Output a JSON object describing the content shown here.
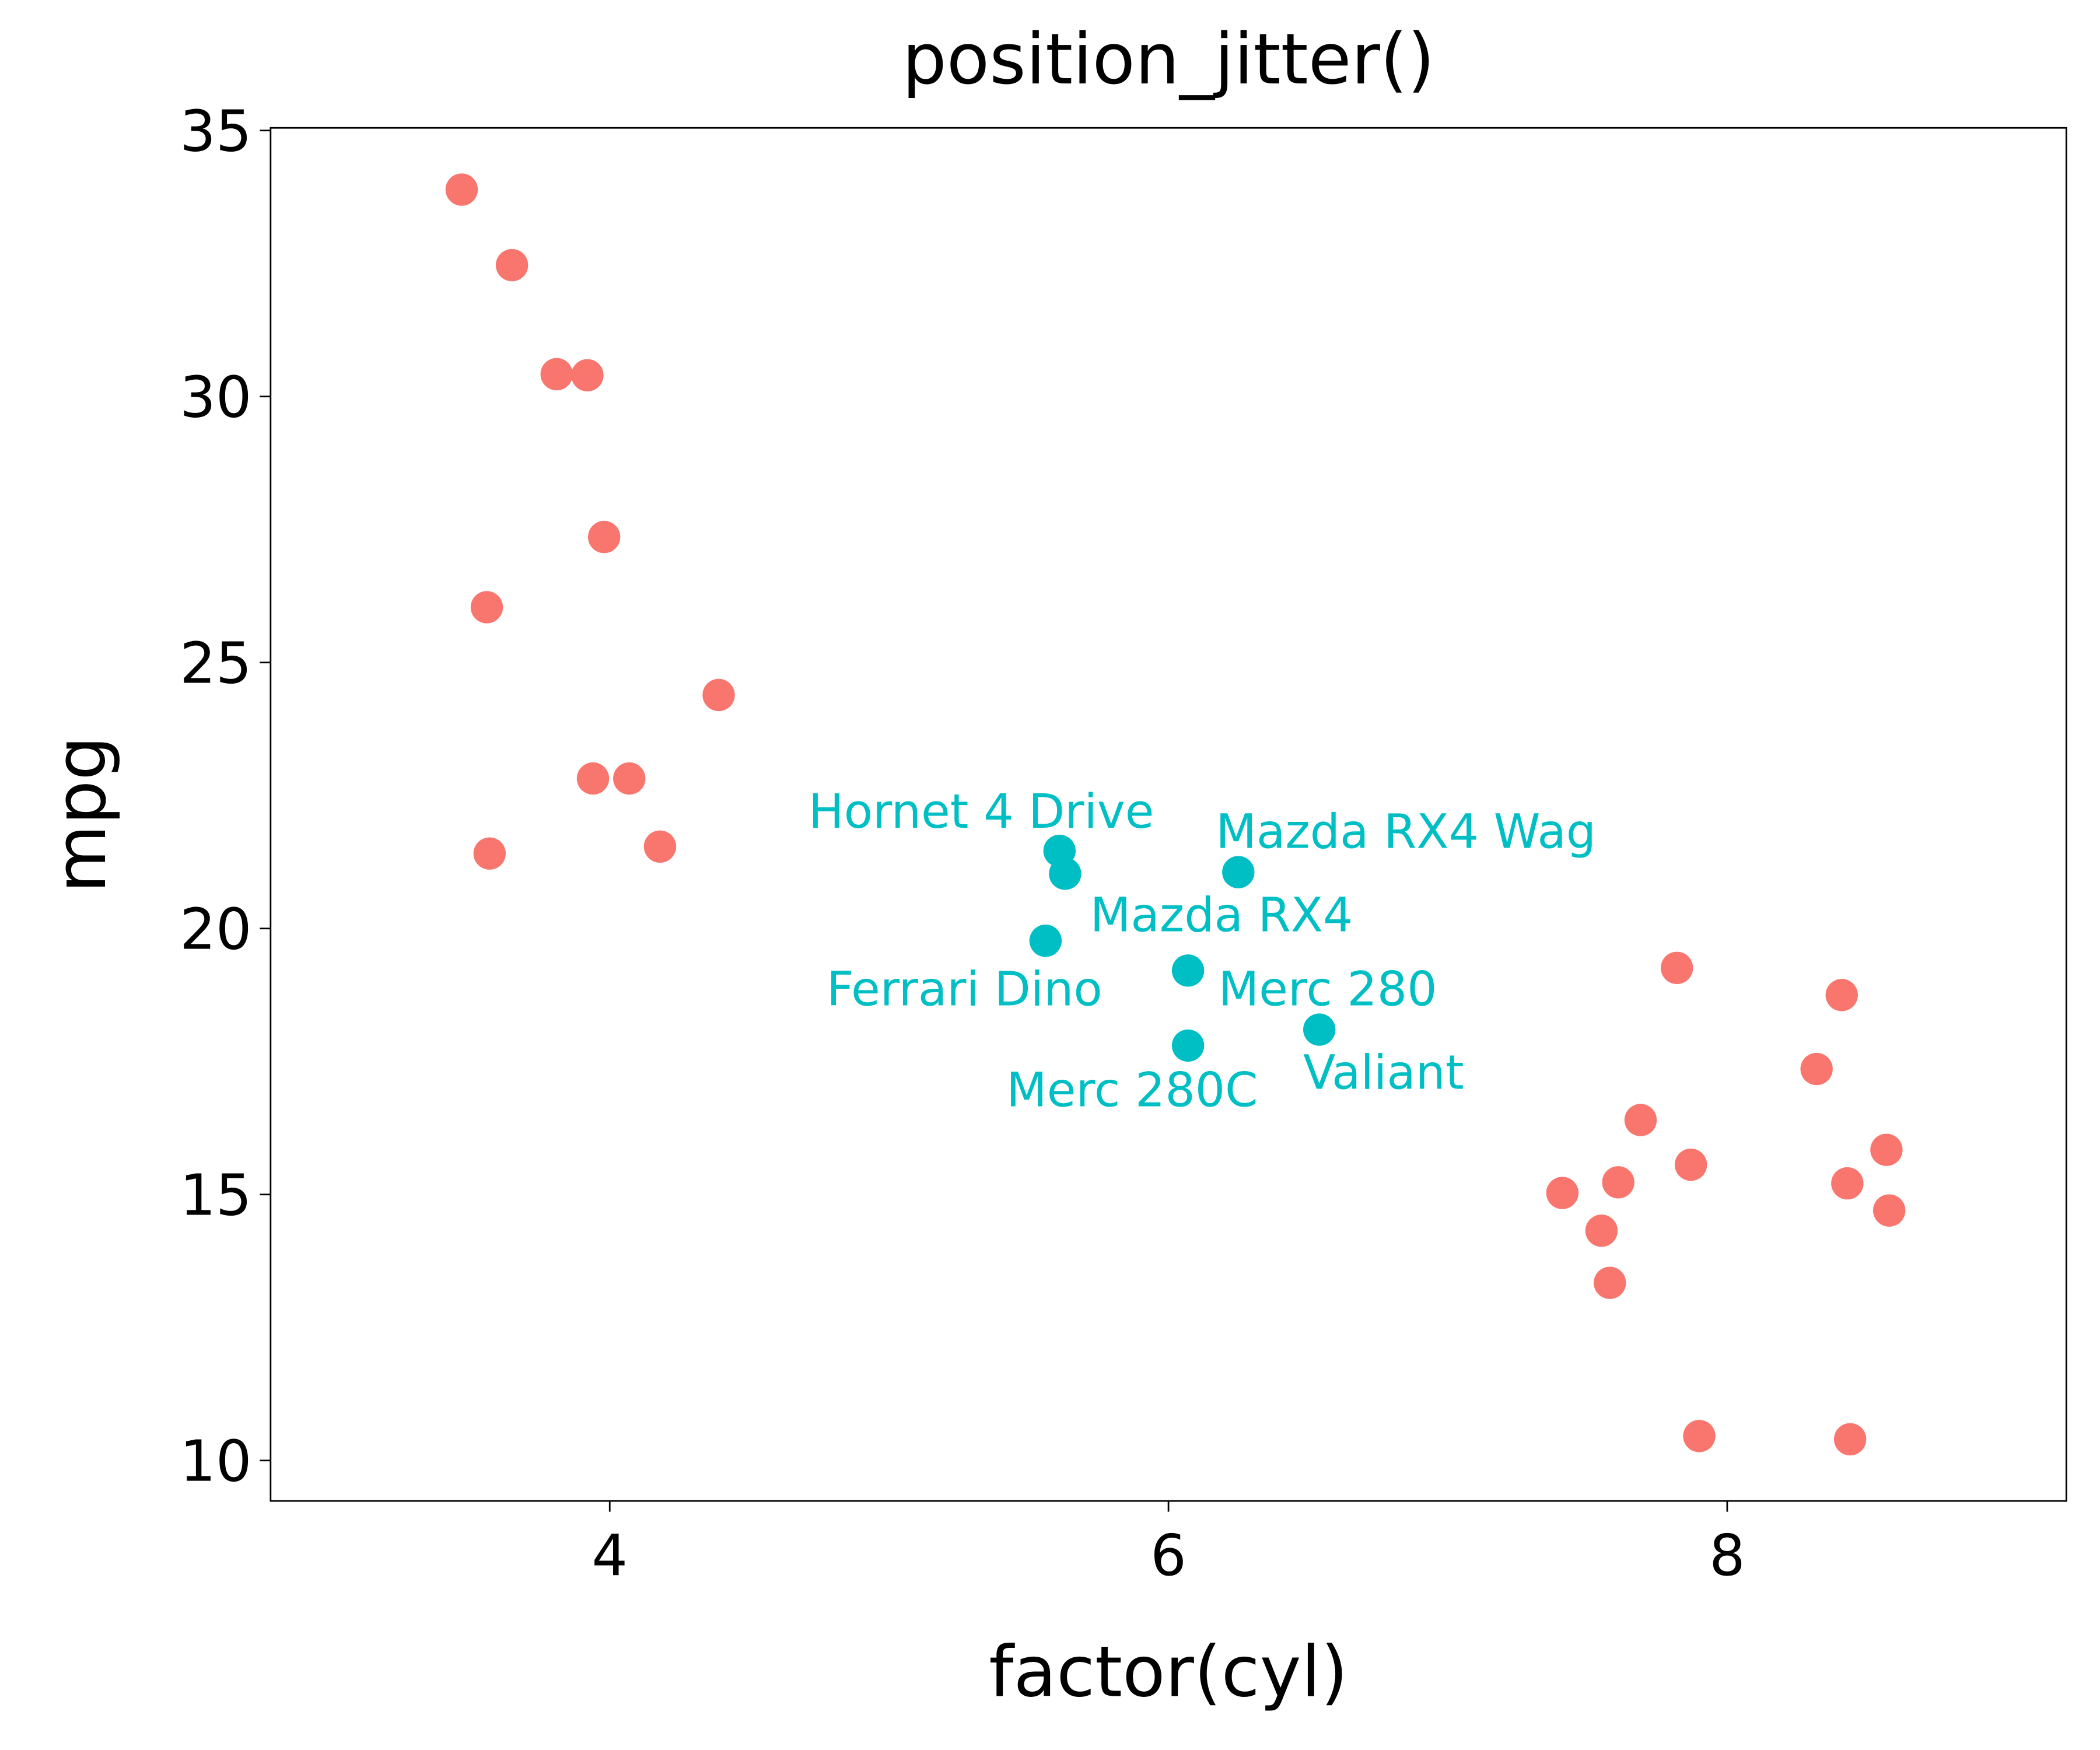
{
  "chart_data": {
    "type": "scatter",
    "title": "position_jitter()",
    "xlabel": "factor(cyl)",
    "ylabel": "mpg",
    "xlim": [
      2.786,
      9.214
    ],
    "ylim": [
      9.24,
      35.05
    ],
    "x_ticks": [
      4,
      6,
      8
    ],
    "y_ticks": [
      10,
      15,
      20,
      25,
      30,
      35
    ],
    "grid": false,
    "colors": {
      "default": "#F8766D",
      "highlight": "#00BFC4"
    },
    "points": [
      {
        "x": 3.47,
        "y": 33.89,
        "group": "default"
      },
      {
        "x": 3.65,
        "y": 32.47,
        "group": "default"
      },
      {
        "x": 3.81,
        "y": 30.42,
        "group": "default"
      },
      {
        "x": 3.92,
        "y": 30.4,
        "group": "default"
      },
      {
        "x": 3.98,
        "y": 27.36,
        "group": "default"
      },
      {
        "x": 3.56,
        "y": 26.04,
        "group": "default"
      },
      {
        "x": 4.39,
        "y": 24.39,
        "group": "default"
      },
      {
        "x": 3.94,
        "y": 22.82,
        "group": "default"
      },
      {
        "x": 4.07,
        "y": 22.82,
        "group": "default"
      },
      {
        "x": 4.18,
        "y": 21.54,
        "group": "default"
      },
      {
        "x": 3.57,
        "y": 21.41,
        "group": "default"
      },
      {
        "x": 7.82,
        "y": 19.26,
        "group": "default"
      },
      {
        "x": 8.41,
        "y": 18.75,
        "group": "default"
      },
      {
        "x": 8.32,
        "y": 17.36,
        "group": "default"
      },
      {
        "x": 7.69,
        "y": 16.4,
        "group": "default"
      },
      {
        "x": 7.87,
        "y": 15.56,
        "group": "default"
      },
      {
        "x": 7.61,
        "y": 15.23,
        "group": "default"
      },
      {
        "x": 7.41,
        "y": 15.03,
        "group": "default"
      },
      {
        "x": 8.43,
        "y": 15.21,
        "group": "default"
      },
      {
        "x": 8.57,
        "y": 15.84,
        "group": "default"
      },
      {
        "x": 8.58,
        "y": 14.7,
        "group": "default"
      },
      {
        "x": 7.55,
        "y": 14.32,
        "group": "default"
      },
      {
        "x": 7.58,
        "y": 13.34,
        "group": "default"
      },
      {
        "x": 7.9,
        "y": 10.46,
        "group": "default"
      },
      {
        "x": 8.44,
        "y": 10.4,
        "group": "default"
      },
      {
        "x": 5.61,
        "y": 21.46,
        "group": "highlight"
      },
      {
        "x": 5.63,
        "y": 21.03,
        "group": "highlight"
      },
      {
        "x": 6.25,
        "y": 21.06,
        "group": "highlight"
      },
      {
        "x": 5.56,
        "y": 19.77,
        "group": "highlight"
      },
      {
        "x": 6.07,
        "y": 19.21,
        "group": "highlight"
      },
      {
        "x": 6.07,
        "y": 17.8,
        "group": "highlight"
      },
      {
        "x": 6.54,
        "y": 18.1,
        "group": "highlight"
      }
    ],
    "annotations": [
      {
        "text": "Hornet 4 Drive",
        "x": 5.33,
        "y": 22.2
      },
      {
        "text": "Mazda RX4 Wag",
        "x": 6.85,
        "y": 21.82
      },
      {
        "text": "Mazda RX4",
        "x": 6.19,
        "y": 20.25
      },
      {
        "text": "Ferrari Dino",
        "x": 5.27,
        "y": 18.86
      },
      {
        "text": "Merc 280",
        "x": 6.57,
        "y": 18.86
      },
      {
        "text": "Merc 280C",
        "x": 5.87,
        "y": 16.96
      },
      {
        "text": "Valiant",
        "x": 6.77,
        "y": 17.29
      }
    ]
  }
}
